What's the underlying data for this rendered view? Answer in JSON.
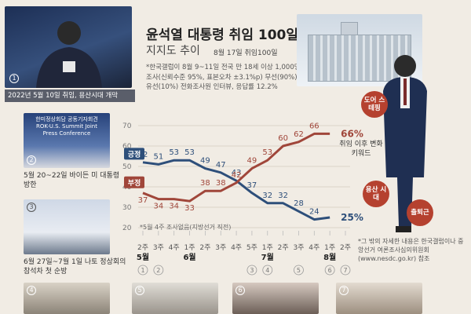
{
  "header": {
    "title": "윤석열 대통령 취임 100일",
    "subtitle": "지지도 추이",
    "date": "8월 17일 취임100일"
  },
  "note": "*한국갤럽이 8월 9~11일 전국 만 18세 이상 1,000명 조사(신뢰수준 95%, 표본오차 ±3.1%p) 무선(90%)·유선(10%) 전화조사원 인터뷰, 응답률 12.2%",
  "keywords_label": "취임 이후 변화 키워드",
  "keywords": [
    "도어 스테핑",
    "용산 시대",
    "출퇴근"
  ],
  "source": "*그 밖의 자세한 내용은 한국갤럽이나 중앙선거 여론조사심의위원회 (www.nesdc.go.kr) 참조",
  "captions": [
    {
      "num": "1",
      "text": "2022년 5월 10일 취임, 용산시대 개막",
      "bold": ""
    },
    {
      "num": "2",
      "text": "5월 20~22일 바이든 미 대통령 방한",
      "bold": ""
    },
    {
      "num": "3",
      "text": "6월 27일~7월 1일 나토 정상회의 참석차 첫 순방",
      "bold": ""
    },
    {
      "num": "4",
      "text": ""
    },
    {
      "num": "5",
      "text": ""
    },
    {
      "num": "6",
      "text": ""
    },
    {
      "num": "7",
      "text": ""
    }
  ],
  "photo2_text": "한미정상회담 공동기자회견 ROK-U.S. Summit Joint Press Conference",
  "chart_data": {
    "type": "line",
    "categories": [
      "2주",
      "3주",
      "4주",
      "1주",
      "2주",
      "3주",
      "4주",
      "5주",
      "1주",
      "2주",
      "3주",
      "4주",
      "1주",
      "2주"
    ],
    "month_labels": [
      {
        "index": 0,
        "label": "5월"
      },
      {
        "index": 3,
        "label": "6월"
      },
      {
        "index": 8,
        "label": "7월"
      },
      {
        "index": 12,
        "label": "8월"
      }
    ],
    "event_markers": [
      {
        "index": 0,
        "label": "1"
      },
      {
        "index": 1,
        "label": "2"
      },
      {
        "index": 7,
        "label": "3"
      },
      {
        "index": 8,
        "label": "4"
      },
      {
        "index": 10,
        "label": "5"
      },
      {
        "index": 12,
        "label": "6"
      },
      {
        "index": 13,
        "label": "7"
      }
    ],
    "series": [
      {
        "name": "긍정",
        "color": "#2e4f7a",
        "values": [
          52,
          51,
          53,
          53,
          49,
          47,
          43,
          37,
          32,
          32,
          28,
          24,
          25,
          null
        ]
      },
      {
        "name": "부정",
        "color": "#a0463a",
        "values": [
          37,
          34,
          34,
          33,
          38,
          38,
          42,
          49,
          53,
          60,
          62,
          66,
          66,
          null
        ]
      }
    ],
    "last_labels": {
      "positive": "25%",
      "negative": "66%"
    },
    "missing_note": "*5월 4주 조사없음(지방선거 직전)",
    "yticks": [
      20,
      30,
      40,
      50,
      60,
      70
    ],
    "ylim": [
      20,
      70
    ],
    "grid": true
  }
}
